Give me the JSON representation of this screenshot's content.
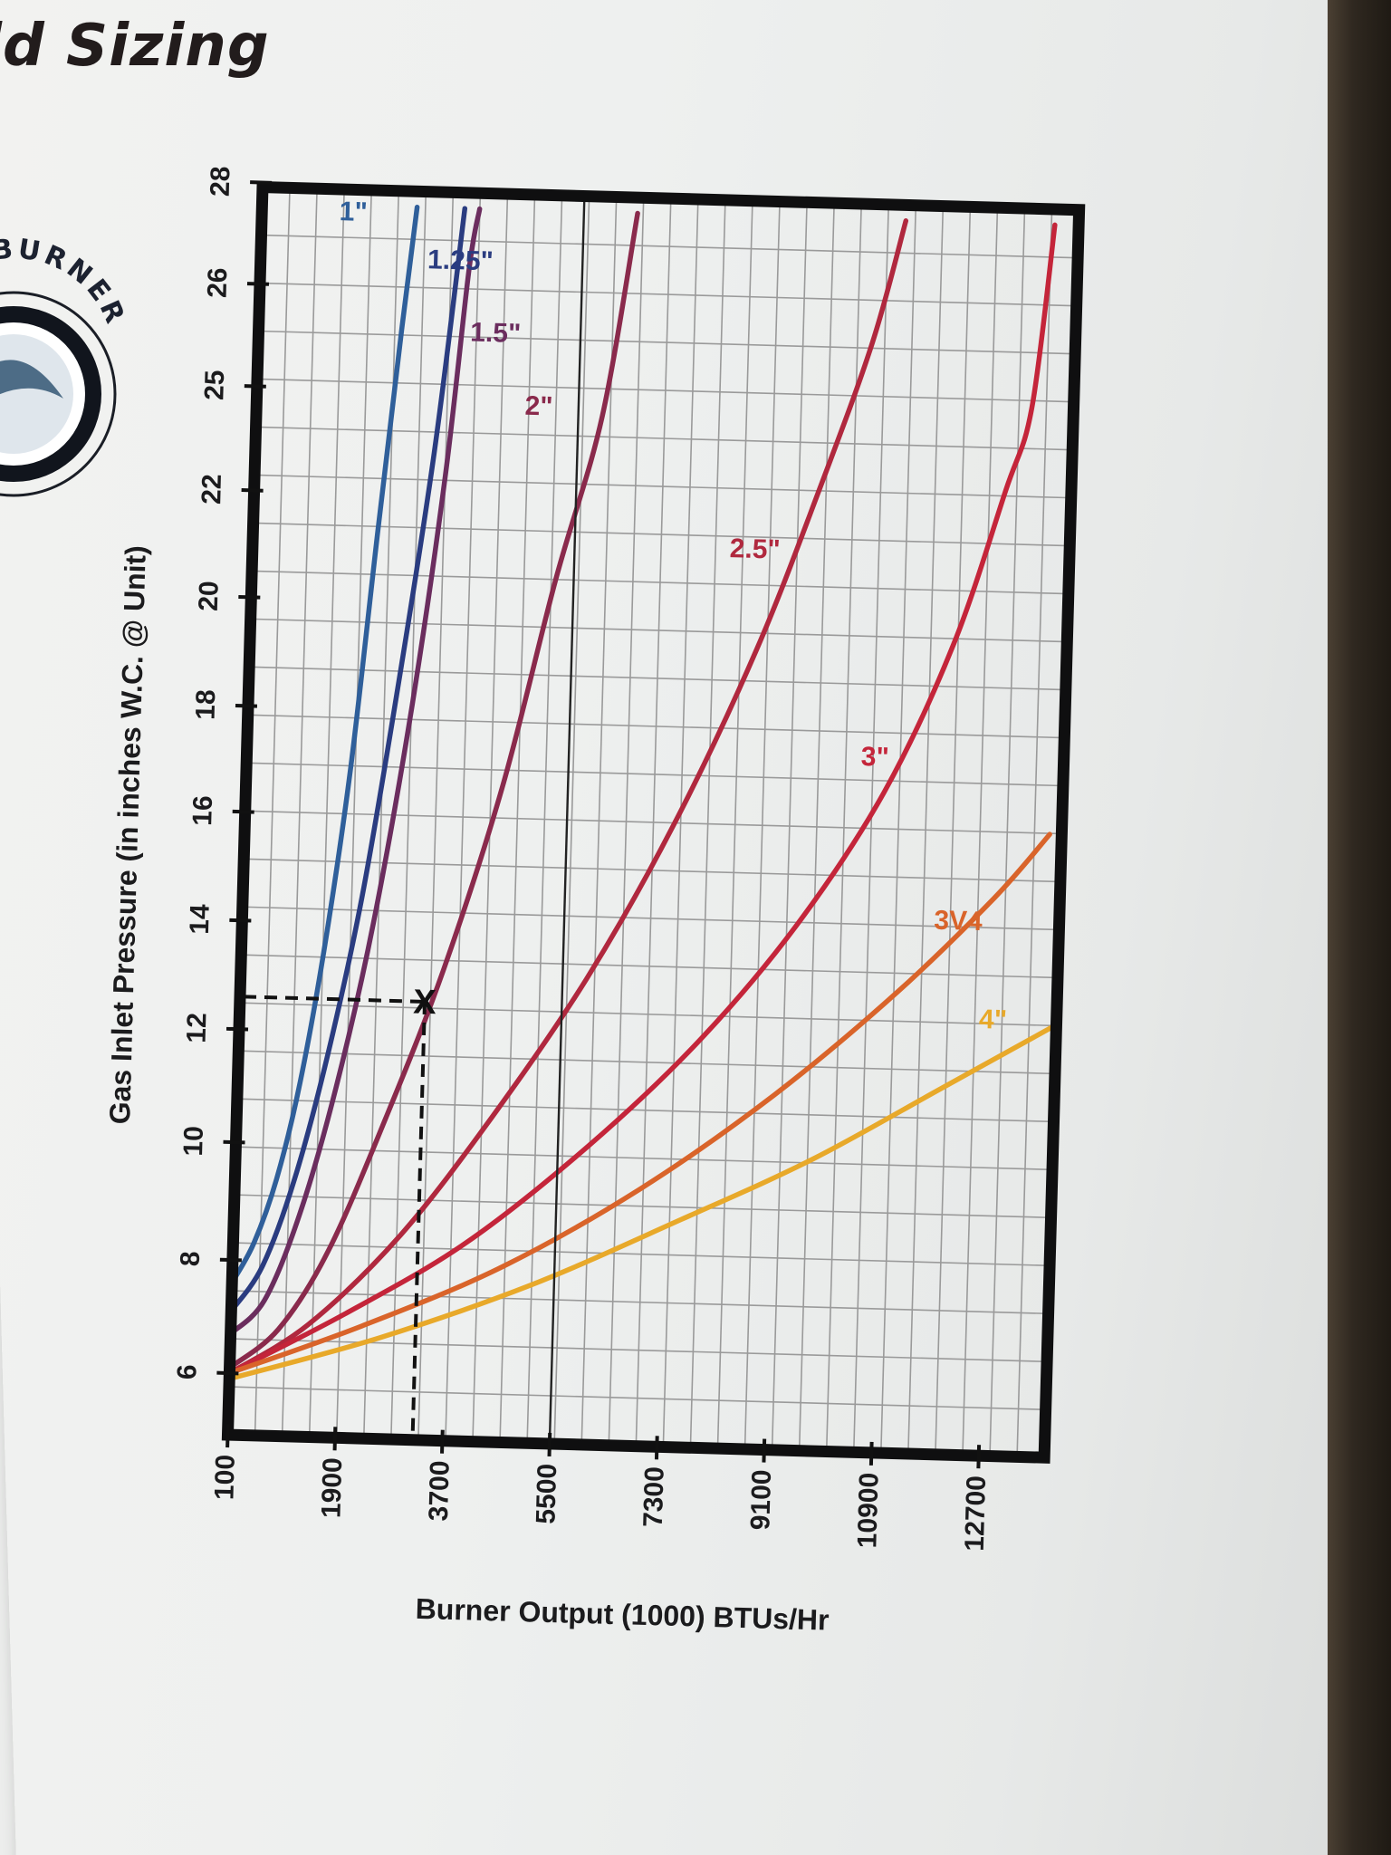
{
  "header": {
    "title": "ld Sizing"
  },
  "logo": {
    "text": "T BURNER",
    "icon": "burner-flame-logo"
  },
  "chart_data": {
    "type": "line",
    "title": "",
    "xlabel": "Burner Output (1000) BTUs/Hr",
    "ylabel": "Gas Inlet Pressure (in inches W.C. @ Unit)",
    "x_ticks": [
      "100",
      "1900",
      "3700",
      "5500",
      "7300",
      "9100",
      "10900",
      "12700"
    ],
    "y_ticks": [
      "28",
      "26",
      "25",
      "22",
      "20",
      "18",
      "16",
      "14",
      "12",
      "10",
      "8",
      "6"
    ],
    "grid": true,
    "series": [
      {
        "name": "1\"",
        "color": "#2f5f9a",
        "points": [
          [
            100,
            7.6
          ],
          [
            450,
            8.3
          ],
          [
            800,
            9.4
          ],
          [
            1150,
            11.1
          ],
          [
            1500,
            13.6
          ],
          [
            1850,
            16.9
          ],
          [
            2200,
            21.4
          ],
          [
            2500,
            25.6
          ],
          [
            2700,
            27.6
          ]
        ]
      },
      {
        "name": "1.25\"",
        "color": "#2a3c80",
        "points": [
          [
            100,
            7.1
          ],
          [
            600,
            7.9
          ],
          [
            1100,
            9.4
          ],
          [
            1600,
            11.6
          ],
          [
            2100,
            14.5
          ],
          [
            2600,
            18.4
          ],
          [
            3100,
            23.2
          ],
          [
            3500,
            27.6
          ]
        ]
      },
      {
        "name": "1.5\"",
        "color": "#6b2d5e",
        "points": [
          [
            100,
            6.7
          ],
          [
            650,
            7.3
          ],
          [
            1200,
            8.8
          ],
          [
            1750,
            11.0
          ],
          [
            2300,
            14.0
          ],
          [
            2850,
            18.1
          ],
          [
            3300,
            22.6
          ],
          [
            3600,
            26.4
          ],
          [
            3750,
            27.6
          ]
        ]
      },
      {
        "name": "2\"",
        "color": "#8a2a4c",
        "points": [
          [
            100,
            6.1
          ],
          [
            900,
            6.8
          ],
          [
            1700,
            8.2
          ],
          [
            2600,
            10.5
          ],
          [
            3500,
            13.2
          ],
          [
            4400,
            16.6
          ],
          [
            5200,
            20.5
          ],
          [
            5900,
            24.4
          ],
          [
            6400,
            27.6
          ]
        ]
      },
      {
        "name": "2.5\"",
        "color": "#b0283e",
        "points": [
          [
            100,
            6.0
          ],
          [
            1400,
            6.9
          ],
          [
            2900,
            8.5
          ],
          [
            4400,
            10.6
          ],
          [
            5900,
            13.1
          ],
          [
            7300,
            16.0
          ],
          [
            8600,
            19.3
          ],
          [
            9600,
            22.6
          ],
          [
            10400,
            25.6
          ],
          [
            10900,
            27.6
          ]
        ]
      },
      {
        "name": "3\"",
        "color": "#c4253a",
        "points": [
          [
            100,
            6.0
          ],
          [
            2000,
            7.1
          ],
          [
            4000,
            8.4
          ],
          [
            6000,
            10.1
          ],
          [
            7800,
            12.0
          ],
          [
            9400,
            14.2
          ],
          [
            10800,
            16.7
          ],
          [
            11900,
            19.5
          ],
          [
            12700,
            22.6
          ],
          [
            13100,
            25.0
          ],
          [
            13400,
            27.6
          ]
        ]
      },
      {
        "name": "3V4",
        "color": "#d9642a",
        "points": [
          [
            100,
            6.0
          ],
          [
            2300,
            6.9
          ],
          [
            4600,
            8.0
          ],
          [
            6900,
            9.4
          ],
          [
            9100,
            11.1
          ],
          [
            11100,
            13.0
          ],
          [
            12700,
            14.8
          ],
          [
            13600,
            16.0
          ]
        ]
      },
      {
        "name": "4\"",
        "color": "#e8a92a",
        "points": [
          [
            100,
            5.9
          ],
          [
            2600,
            6.7
          ],
          [
            5100,
            7.7
          ],
          [
            7600,
            8.9
          ],
          [
            9800,
            10.0
          ],
          [
            11900,
            11.3
          ],
          [
            13800,
            12.5
          ]
        ]
      }
    ],
    "annotations": {
      "example_point": {
        "x": 3200,
        "y": 12.6,
        "marker": "X"
      },
      "vertical_reference_x": 5500
    }
  }
}
